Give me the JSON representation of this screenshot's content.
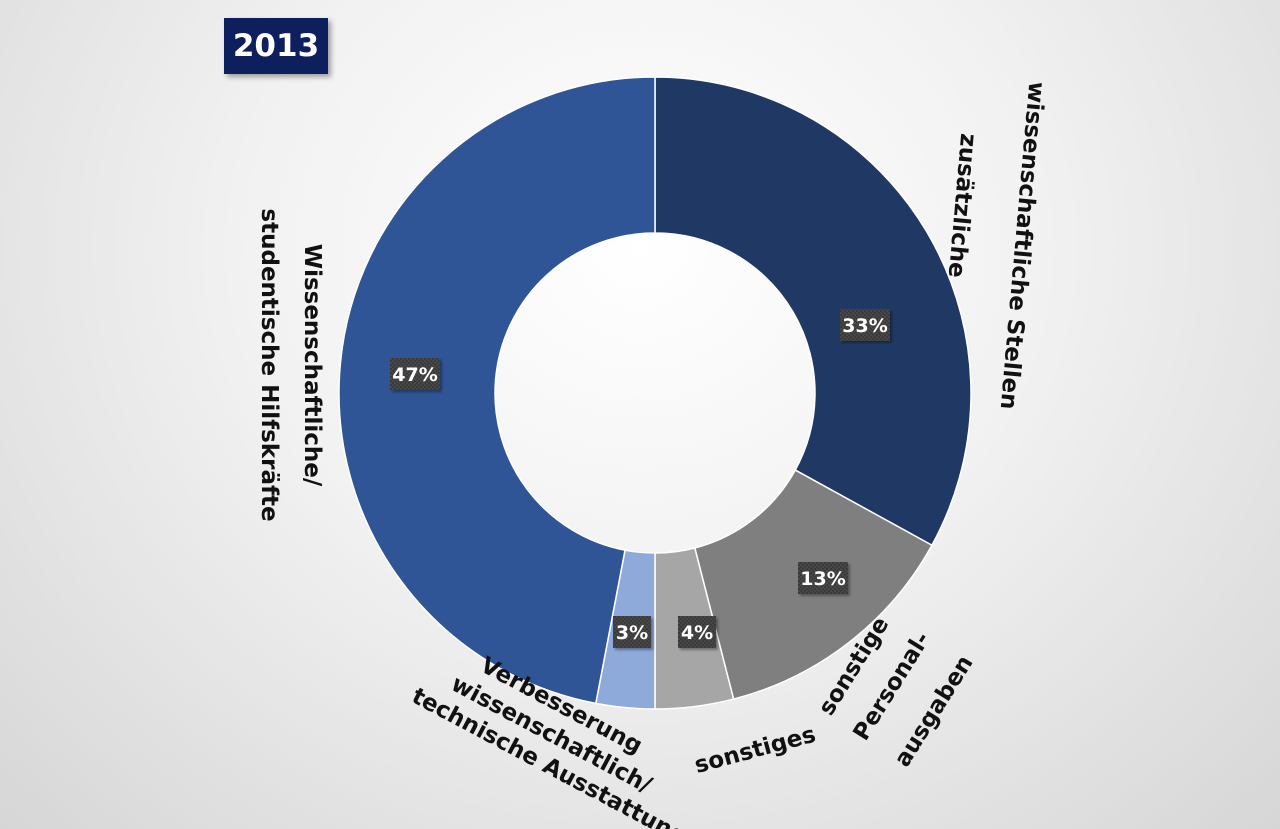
{
  "badge": {
    "year": "2013"
  },
  "chart_data": {
    "type": "pie",
    "categories": [
      "zusätzliche wissenschaftliche Stellen",
      "sonstige Personal-ausgaben",
      "sonstiges",
      "Verbesserung wissenschaftlich/ technische Ausstattung",
      "Wissenschaftliche/ studentische Hilfskräfte"
    ],
    "values": [
      33,
      13,
      4,
      3,
      47
    ],
    "value_labels": [
      "33%",
      "13%",
      "4%",
      "3%",
      "47%"
    ],
    "category_lines": [
      [
        "zusätzliche",
        "wissenschaftliche Stellen"
      ],
      [
        "sonstige",
        "Personal-",
        "ausgaben"
      ],
      [
        "sonstiges"
      ],
      [
        "Verbesserung",
        "wissenschaftlich/",
        "technische Ausstattung"
      ],
      [
        "Wissenschaftliche/",
        "studentische Hilfskräfte"
      ]
    ],
    "colors": [
      "#1f3864",
      "#7f7f7f",
      "#a6a6a6",
      "#8eaadb",
      "#2f5597"
    ],
    "donut": true,
    "legend": "none"
  }
}
